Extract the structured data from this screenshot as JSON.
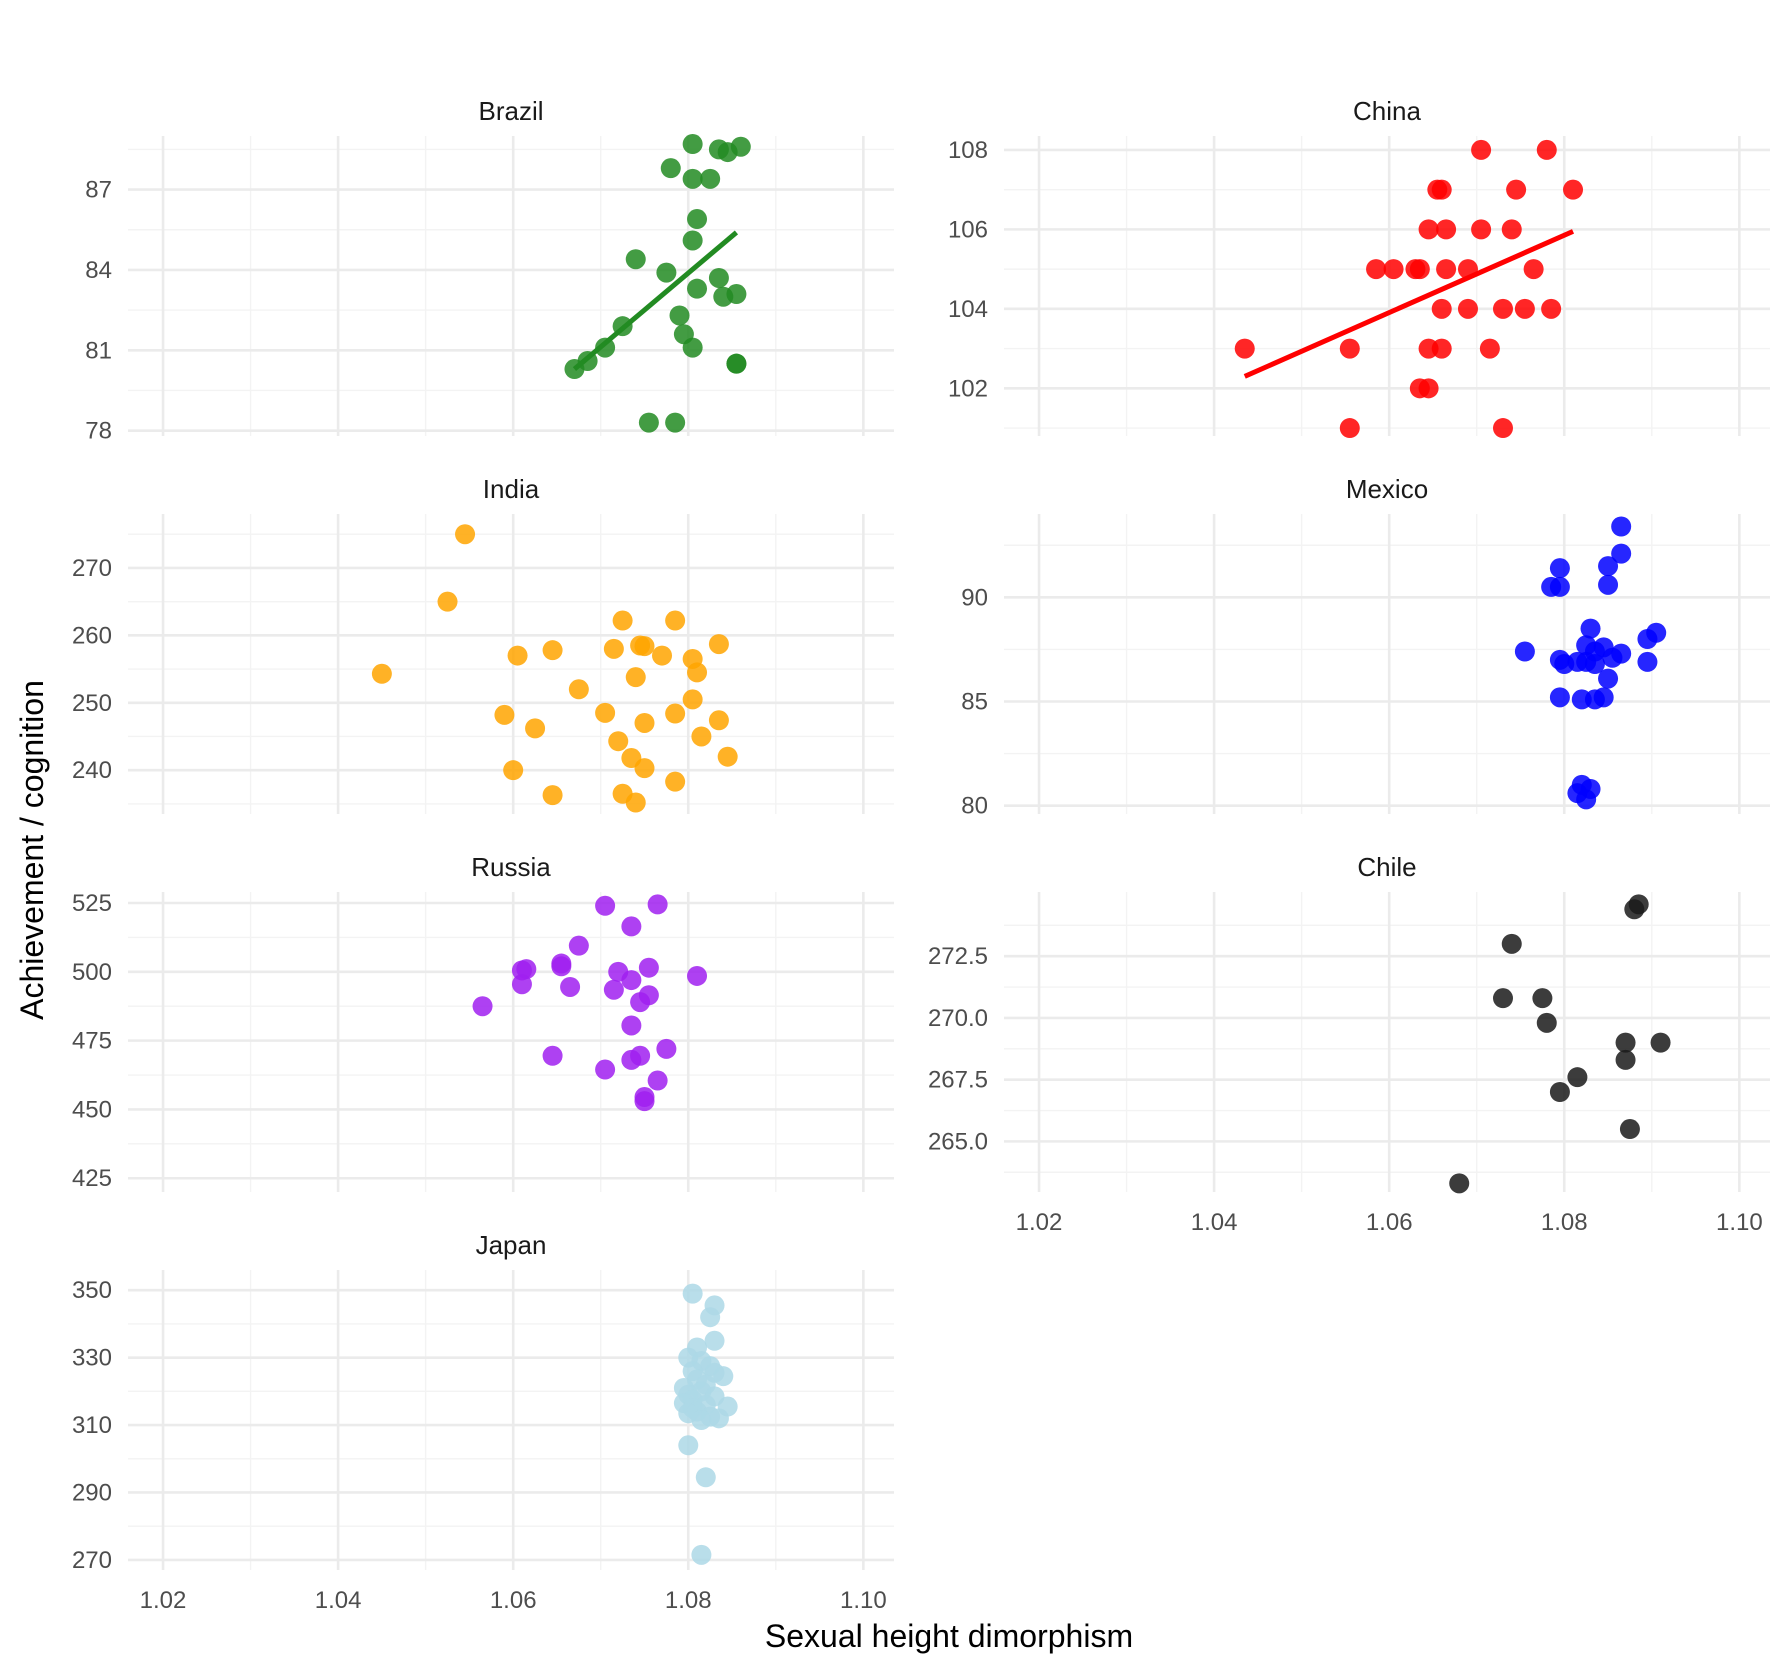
{
  "chart_data": {
    "type": "scatter",
    "xlabel": "Sexual height dimorphism",
    "ylabel": "Achievement / cognition",
    "xlim": [
      1.016,
      1.1035
    ],
    "x_ticks": [
      1.02,
      1.04,
      1.06,
      1.08,
      1.1
    ],
    "x_tick_labels": [
      "1.02",
      "1.04",
      "1.06",
      "1.08",
      "1.10"
    ],
    "grid": true,
    "legend": "none",
    "panels": [
      {
        "name": "Brazil",
        "color": "#228B22",
        "ylim": [
          77.8,
          89.0
        ],
        "y_ticks": [
          78,
          81,
          84,
          87
        ],
        "y_tick_labels": [
          "78",
          "81",
          "84",
          "87"
        ],
        "fit": [
          [
            1.067,
            80.3
          ],
          [
            1.0855,
            85.4
          ]
        ],
        "points": [
          [
            1.0805,
            88.7
          ],
          [
            1.0835,
            88.5
          ],
          [
            1.0845,
            88.4
          ],
          [
            1.086,
            88.6
          ],
          [
            1.078,
            87.8
          ],
          [
            1.0805,
            87.4
          ],
          [
            1.0825,
            87.4
          ],
          [
            1.081,
            85.9
          ],
          [
            1.0805,
            85.1
          ],
          [
            1.074,
            84.4
          ],
          [
            1.0775,
            83.9
          ],
          [
            1.0835,
            83.7
          ],
          [
            1.081,
            83.3
          ],
          [
            1.0855,
            83.1
          ],
          [
            1.084,
            83.0
          ],
          [
            1.079,
            82.3
          ],
          [
            1.0725,
            81.9
          ],
          [
            1.0795,
            81.6
          ],
          [
            1.0705,
            81.1
          ],
          [
            1.0805,
            81.1
          ],
          [
            1.0685,
            80.6
          ],
          [
            1.067,
            80.3
          ],
          [
            1.0855,
            80.5
          ],
          [
            1.0855,
            80.5
          ],
          [
            1.0755,
            78.3
          ],
          [
            1.0785,
            78.3
          ]
        ]
      },
      {
        "name": "China",
        "color": "#FF0000",
        "ylim": [
          100.8,
          108.35
        ],
        "y_ticks": [
          102,
          104,
          106,
          108
        ],
        "y_tick_labels": [
          "102",
          "104",
          "106",
          "108"
        ],
        "fit": [
          [
            1.0435,
            102.3
          ],
          [
            1.081,
            105.95
          ]
        ],
        "points": [
          [
            1.0435,
            103.0
          ],
          [
            1.0555,
            103.0
          ],
          [
            1.0555,
            101.0
          ],
          [
            1.0705,
            108.0
          ],
          [
            1.078,
            108.0
          ],
          [
            1.0655,
            107.0
          ],
          [
            1.066,
            107.0
          ],
          [
            1.0745,
            107.0
          ],
          [
            1.081,
            107.0
          ],
          [
            1.0645,
            106.0
          ],
          [
            1.0665,
            106.0
          ],
          [
            1.0705,
            106.0
          ],
          [
            1.074,
            106.0
          ],
          [
            1.0585,
            105.0
          ],
          [
            1.0605,
            105.0
          ],
          [
            1.063,
            105.0
          ],
          [
            1.0635,
            105.0
          ],
          [
            1.0665,
            105.0
          ],
          [
            1.069,
            105.0
          ],
          [
            1.0765,
            105.0
          ],
          [
            1.066,
            104.0
          ],
          [
            1.069,
            104.0
          ],
          [
            1.073,
            104.0
          ],
          [
            1.0755,
            104.0
          ],
          [
            1.0785,
            104.0
          ],
          [
            1.0645,
            103.0
          ],
          [
            1.066,
            103.0
          ],
          [
            1.0715,
            103.0
          ],
          [
            1.0635,
            102.0
          ],
          [
            1.0645,
            102.0
          ],
          [
            1.073,
            101.0
          ]
        ]
      },
      {
        "name": "India",
        "color": "#FFA500",
        "ylim": [
          233.5,
          278.0
        ],
        "y_ticks": [
          240,
          250,
          260,
          270
        ],
        "y_tick_labels": [
          "240",
          "250",
          "260",
          "270"
        ],
        "fit": null,
        "points": [
          [
            1.0545,
            275.0
          ],
          [
            1.0525,
            265.0
          ],
          [
            1.0725,
            262.2
          ],
          [
            1.0785,
            262.2
          ],
          [
            1.045,
            254.3
          ],
          [
            1.0605,
            257.0
          ],
          [
            1.0645,
            257.8
          ],
          [
            1.0715,
            258.0
          ],
          [
            1.0745,
            258.5
          ],
          [
            1.075,
            258.4
          ],
          [
            1.077,
            257.0
          ],
          [
            1.0805,
            256.5
          ],
          [
            1.0835,
            258.7
          ],
          [
            1.081,
            254.5
          ],
          [
            1.074,
            253.8
          ],
          [
            1.0675,
            252.0
          ],
          [
            1.0805,
            250.5
          ],
          [
            1.059,
            248.2
          ],
          [
            1.0705,
            248.5
          ],
          [
            1.0785,
            248.4
          ],
          [
            1.0835,
            247.4
          ],
          [
            1.0625,
            246.2
          ],
          [
            1.075,
            247.0
          ],
          [
            1.0815,
            245.0
          ],
          [
            1.072,
            244.3
          ],
          [
            1.0735,
            241.8
          ],
          [
            1.0845,
            242.0
          ],
          [
            1.06,
            240.0
          ],
          [
            1.075,
            240.3
          ],
          [
            1.0645,
            236.3
          ],
          [
            1.0725,
            236.5
          ],
          [
            1.0785,
            238.3
          ],
          [
            1.074,
            235.2
          ]
        ]
      },
      {
        "name": "Mexico",
        "color": "#0000FF",
        "ylim": [
          79.6,
          94.0
        ],
        "y_ticks": [
          80,
          85,
          90
        ],
        "y_tick_labels": [
          "80",
          "85",
          "90"
        ],
        "fit": null,
        "points": [
          [
            1.0865,
            93.4
          ],
          [
            1.0865,
            92.1
          ],
          [
            1.085,
            91.5
          ],
          [
            1.0795,
            91.4
          ],
          [
            1.0785,
            90.5
          ],
          [
            1.0795,
            90.5
          ],
          [
            1.085,
            90.6
          ],
          [
            1.083,
            88.5
          ],
          [
            1.0905,
            88.3
          ],
          [
            1.0895,
            88.0
          ],
          [
            1.0825,
            87.7
          ],
          [
            1.0845,
            87.6
          ],
          [
            1.0755,
            87.4
          ],
          [
            1.0835,
            87.4
          ],
          [
            1.0865,
            87.3
          ],
          [
            1.0855,
            87.1
          ],
          [
            1.0795,
            87.0
          ],
          [
            1.0815,
            86.9
          ],
          [
            1.0825,
            86.9
          ],
          [
            1.08,
            86.8
          ],
          [
            1.0835,
            86.8
          ],
          [
            1.0895,
            86.9
          ],
          [
            1.085,
            86.1
          ],
          [
            1.0795,
            85.2
          ],
          [
            1.082,
            85.1
          ],
          [
            1.0835,
            85.1
          ],
          [
            1.0845,
            85.2
          ],
          [
            1.082,
            81.0
          ],
          [
            1.083,
            80.8
          ],
          [
            1.0815,
            80.6
          ],
          [
            1.0825,
            80.3
          ]
        ]
      },
      {
        "name": "Russia",
        "color": "#A020F0",
        "ylim": [
          420.0,
          529.0
        ],
        "y_ticks": [
          425,
          450,
          475,
          500,
          525
        ],
        "y_tick_labels": [
          "425",
          "450",
          "475",
          "500",
          "525"
        ],
        "fit": null,
        "points": [
          [
            1.0705,
            524.0
          ],
          [
            1.0765,
            524.5
          ],
          [
            1.0735,
            516.5
          ],
          [
            1.0675,
            509.5
          ],
          [
            1.0655,
            503.0
          ],
          [
            1.0655,
            502.0
          ],
          [
            1.0755,
            501.5
          ],
          [
            1.0615,
            501.0
          ],
          [
            1.061,
            500.5
          ],
          [
            1.072,
            500.0
          ],
          [
            1.081,
            498.5
          ],
          [
            1.0735,
            497.0
          ],
          [
            1.061,
            495.5
          ],
          [
            1.0665,
            494.5
          ],
          [
            1.0715,
            493.5
          ],
          [
            1.0755,
            491.5
          ],
          [
            1.0745,
            489.0
          ],
          [
            1.0565,
            487.5
          ],
          [
            1.0735,
            480.5
          ],
          [
            1.0775,
            472.0
          ],
          [
            1.0645,
            469.5
          ],
          [
            1.0735,
            468.0
          ],
          [
            1.0745,
            469.5
          ],
          [
            1.0705,
            464.5
          ],
          [
            1.0765,
            460.5
          ],
          [
            1.075,
            454.5
          ],
          [
            1.075,
            453.0
          ]
        ]
      },
      {
        "name": "Chile",
        "color": "#1a1a1a",
        "ylim": [
          262.95,
          275.1
        ],
        "y_ticks": [
          265.0,
          267.5,
          270.0,
          272.5
        ],
        "y_tick_labels": [
          "265.0",
          "267.5",
          "270.0",
          "272.5"
        ],
        "fit": null,
        "points": [
          [
            1.0885,
            274.6
          ],
          [
            1.088,
            274.4
          ],
          [
            1.074,
            273.0
          ],
          [
            1.073,
            270.8
          ],
          [
            1.0775,
            270.8
          ],
          [
            1.078,
            269.8
          ],
          [
            1.087,
            269.0
          ],
          [
            1.091,
            269.0
          ],
          [
            1.087,
            268.3
          ],
          [
            1.0815,
            267.6
          ],
          [
            1.0795,
            267.0
          ],
          [
            1.0875,
            265.5
          ],
          [
            1.068,
            263.3
          ]
        ]
      },
      {
        "name": "Japan",
        "color": "#ADD8E6",
        "ylim": [
          267.0,
          356.0
        ],
        "y_ticks": [
          270,
          290,
          310,
          330,
          350
        ],
        "y_tick_labels": [
          "270",
          "290",
          "310",
          "330",
          "350"
        ],
        "fit": null,
        "points": [
          [
            1.0805,
            349.0
          ],
          [
            1.083,
            345.5
          ],
          [
            1.0825,
            342.0
          ],
          [
            1.083,
            335.0
          ],
          [
            1.081,
            333.0
          ],
          [
            1.08,
            330.0
          ],
          [
            1.0815,
            329.0
          ],
          [
            1.0825,
            327.5
          ],
          [
            1.0805,
            326.0
          ],
          [
            1.083,
            325.5
          ],
          [
            1.084,
            324.5
          ],
          [
            1.081,
            323.5
          ],
          [
            1.082,
            322.0
          ],
          [
            1.0795,
            321.0
          ],
          [
            1.0815,
            320.0
          ],
          [
            1.08,
            319.0
          ],
          [
            1.083,
            318.5
          ],
          [
            1.0805,
            317.5
          ],
          [
            1.0795,
            316.5
          ],
          [
            1.082,
            316.0
          ],
          [
            1.0845,
            315.5
          ],
          [
            1.0805,
            315.0
          ],
          [
            1.081,
            314.0
          ],
          [
            1.08,
            313.5
          ],
          [
            1.0825,
            312.5
          ],
          [
            1.0815,
            311.5
          ],
          [
            1.0835,
            312.0
          ],
          [
            1.08,
            304.0
          ],
          [
            1.082,
            294.5
          ],
          [
            1.0815,
            271.5
          ]
        ]
      }
    ]
  }
}
